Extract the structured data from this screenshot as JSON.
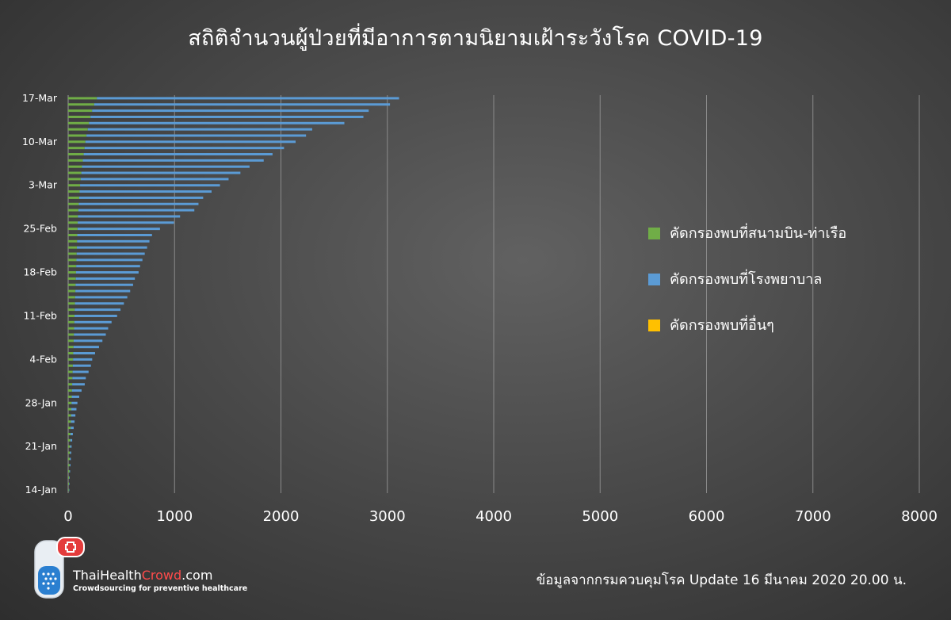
{
  "header": {
    "title": "สถิติจำนวนผู้ป่วยที่มีอาการตามนิยามเฝ้าระวังโรค COVID-19"
  },
  "footer": {
    "brand_part1": "ThaiHealth",
    "brand_part2": "Crowd",
    "brand_part3": ".com",
    "tagline": "Crowdsourcing for preventive healthcare",
    "source": "ข้อมูลจากกรมควบคุมโรค Update 16 มีนาคม 2020 20.00 น."
  },
  "colors": {
    "airport": "#70ad47",
    "hospital": "#5b9bd5",
    "other": "#ffc000",
    "grid": "#8a8a8a",
    "brand_red": "#ff4b4b"
  },
  "chart_data": {
    "type": "bar",
    "orientation": "horizontal",
    "stacked": true,
    "title": "สถิติจำนวนผู้ป่วยที่มีอาการตามนิยามเฝ้าระวังโรค COVID-19",
    "xlim": [
      0,
      8000
    ],
    "x_ticks": [
      "0",
      "1000",
      "2000",
      "3000",
      "4000",
      "5000",
      "6000",
      "7000",
      "8000"
    ],
    "y_tick_labels": [
      "14-Jan",
      "21-Jan",
      "28-Jan",
      "4-Feb",
      "11-Feb",
      "18-Feb",
      "25-Feb",
      "3-Mar",
      "10-Mar",
      "17-Mar"
    ],
    "grid": true,
    "legend_position": "right",
    "categories": [
      "14-Jan",
      "15-Jan",
      "16-Jan",
      "17-Jan",
      "18-Jan",
      "19-Jan",
      "20-Jan",
      "21-Jan",
      "22-Jan",
      "23-Jan",
      "24-Jan",
      "25-Jan",
      "26-Jan",
      "27-Jan",
      "28-Jan",
      "29-Jan",
      "30-Jan",
      "31-Jan",
      "1-Feb",
      "2-Feb",
      "3-Feb",
      "4-Feb",
      "5-Feb",
      "6-Feb",
      "7-Feb",
      "8-Feb",
      "9-Feb",
      "10-Feb",
      "11-Feb",
      "12-Feb",
      "13-Feb",
      "14-Feb",
      "15-Feb",
      "16-Feb",
      "17-Feb",
      "18-Feb",
      "19-Feb",
      "20-Feb",
      "21-Feb",
      "22-Feb",
      "23-Feb",
      "24-Feb",
      "25-Feb",
      "26-Feb",
      "27-Feb",
      "28-Feb",
      "29-Feb",
      "1-Mar",
      "2-Mar",
      "3-Mar",
      "4-Mar",
      "5-Mar",
      "6-Mar",
      "7-Mar",
      "8-Mar",
      "9-Mar",
      "10-Mar",
      "11-Mar",
      "12-Mar",
      "13-Mar",
      "14-Mar",
      "15-Mar",
      "16-Mar",
      "17-Mar"
    ],
    "series": [
      {
        "name": "คัดกรองพบที่สนามบิน-ท่าเรือ",
        "values": [
          6,
          8,
          10,
          12,
          14,
          15,
          17,
          18,
          20,
          22,
          24,
          26,
          28,
          30,
          32,
          34,
          36,
          38,
          40,
          42,
          44,
          46,
          48,
          50,
          52,
          54,
          56,
          58,
          60,
          62,
          64,
          66,
          68,
          70,
          72,
          74,
          76,
          78,
          80,
          82,
          84,
          86,
          88,
          90,
          92,
          96,
          100,
          104,
          108,
          112,
          118,
          124,
          130,
          138,
          146,
          154,
          162,
          172,
          184,
          196,
          210,
          225,
          245,
          270
        ]
      },
      {
        "name": "คัดกรองพบที่โรงพยาบาล",
        "values": [
          2,
          2,
          4,
          6,
          8,
          10,
          12,
          14,
          18,
          22,
          28,
          34,
          40,
          48,
          55,
          70,
          90,
          118,
          126,
          150,
          170,
          180,
          205,
          240,
          270,
          300,
          320,
          350,
          400,
          430,
          460,
          490,
          515,
          540,
          555,
          588,
          600,
          620,
          640,
          660,
          680,
          702,
          775,
          905,
          960,
          1090,
          1125,
          1165,
          1240,
          1315,
          1390,
          1495,
          1575,
          1700,
          1775,
          1875,
          1976,
          2064,
          2110,
          2400,
          2565,
          2600,
          2780,
          2840
        ]
      },
      {
        "name": "คัดกรองพบที่อื่นๆ",
        "values": [
          0,
          0,
          0,
          0,
          0,
          0,
          0,
          0,
          0,
          0,
          0,
          0,
          0,
          0,
          0,
          0,
          0,
          0,
          0,
          0,
          0,
          0,
          0,
          0,
          0,
          0,
          0,
          0,
          0,
          0,
          0,
          0,
          0,
          0,
          0,
          0,
          0,
          0,
          0,
          0,
          0,
          0,
          0,
          0,
          0,
          0,
          0,
          0,
          0,
          0,
          0,
          0,
          0,
          0,
          0,
          0,
          0,
          0,
          0,
          0,
          0,
          0,
          0,
          0
        ]
      }
    ]
  }
}
